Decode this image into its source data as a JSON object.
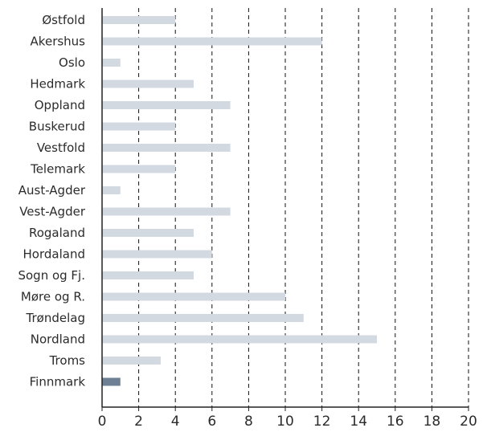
{
  "chart_data": {
    "type": "bar",
    "orientation": "horizontal",
    "categories": [
      "Østfold",
      "Akershus",
      "Oslo",
      "Hedmark",
      "Oppland",
      "Buskerud",
      "Vestfold",
      "Telemark",
      "Aust-Agder",
      "Vest-Agder",
      "Rogaland",
      "Hordaland",
      "Sogn og Fj.",
      "Møre og R.",
      "Trøndelag",
      "Nordland",
      "Troms",
      "Finnmark"
    ],
    "values": [
      4,
      12,
      1,
      5,
      7,
      4,
      7,
      4,
      1,
      7,
      5,
      6,
      5,
      10,
      11,
      15,
      3.2,
      1
    ],
    "highlight_index": 17,
    "xlim": [
      0,
      20
    ],
    "xticks": [
      0,
      2,
      4,
      6,
      8,
      10,
      12,
      14,
      16,
      18,
      20
    ],
    "xticklabels": [
      "0",
      "2",
      "4",
      "6",
      "8",
      "10",
      "12",
      "14",
      "16",
      "18",
      "20"
    ],
    "grid": "vertical dashed",
    "colors": {
      "bar": "#d3d9e1",
      "highlight": "#6e8093",
      "grid": "#111111",
      "axis": "#222222",
      "text": "#2b2b2b"
    },
    "title": "",
    "xlabel": "",
    "ylabel": ""
  }
}
